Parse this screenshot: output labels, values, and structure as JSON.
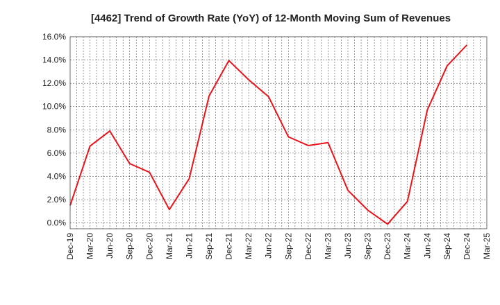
{
  "chart_data": {
    "type": "line",
    "title": "[4462]  Trend of Growth Rate (YoY) of 12-Month Moving Sum of Revenues",
    "xlabel": "",
    "ylabel": "",
    "ylim": [
      -0.5,
      16.0
    ],
    "yticks": [
      0.0,
      2.0,
      4.0,
      6.0,
      8.0,
      10.0,
      12.0,
      14.0,
      16.0
    ],
    "ytick_labels": [
      "0.0%",
      "2.0%",
      "4.0%",
      "6.0%",
      "8.0%",
      "10.0%",
      "12.0%",
      "14.0%",
      "16.0%"
    ],
    "xtick_labels": [
      "Dec-19",
      "Mar-20",
      "Jun-20",
      "Sep-20",
      "Dec-20",
      "Mar-21",
      "Jun-21",
      "Sep-21",
      "Dec-21",
      "Mar-22",
      "Jun-22",
      "Sep-22",
      "Dec-22",
      "Mar-23",
      "Jun-23",
      "Sep-23",
      "Dec-23",
      "Mar-24",
      "Jun-24",
      "Sep-24",
      "Dec-24",
      "Mar-25"
    ],
    "grid": true,
    "series": [
      {
        "color": "#e8141b",
        "values": [
          1.5,
          6.6,
          7.9,
          5.1,
          4.35,
          1.15,
          3.8,
          10.9,
          13.95,
          12.3,
          10.85,
          7.4,
          6.65,
          6.9,
          2.8,
          1.1,
          -0.1,
          1.85,
          9.7,
          13.5,
          15.3
        ]
      }
    ]
  }
}
